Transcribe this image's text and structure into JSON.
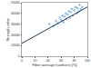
{
  "chart_data": {
    "type": "scatter",
    "x_label": "Fiber average hardness [%]",
    "y_label": "Strength value",
    "xlim": [
      0,
      100
    ],
    "xticks": [
      0,
      20,
      40,
      60,
      80,
      100
    ],
    "ylim": [
      0,
      50000
    ],
    "yticks": [
      0,
      10000,
      20000,
      30000,
      40000,
      50000
    ],
    "grid": false,
    "series": [
      {
        "type": "scatter",
        "color": "#8fbce0",
        "marker": "circle",
        "x": [
          42,
          48,
          52,
          55,
          58,
          60,
          62,
          63,
          65,
          67,
          68,
          70,
          72,
          73,
          75,
          76,
          78,
          80,
          82,
          84,
          85,
          87,
          88,
          90,
          92
        ],
        "values": [
          30000,
          28000,
          33000,
          31000,
          36000,
          34000,
          38000,
          32000,
          37000,
          40000,
          35000,
          39000,
          42000,
          36000,
          41000,
          44000,
          38000,
          43000,
          46000,
          40000,
          45000,
          42000,
          48000,
          44000,
          46000
        ]
      },
      {
        "type": "line",
        "color": "#1f3b5c",
        "line_style": "solid",
        "x": [
          0,
          100
        ],
        "values": [
          12000,
          46000
        ]
      }
    ]
  }
}
